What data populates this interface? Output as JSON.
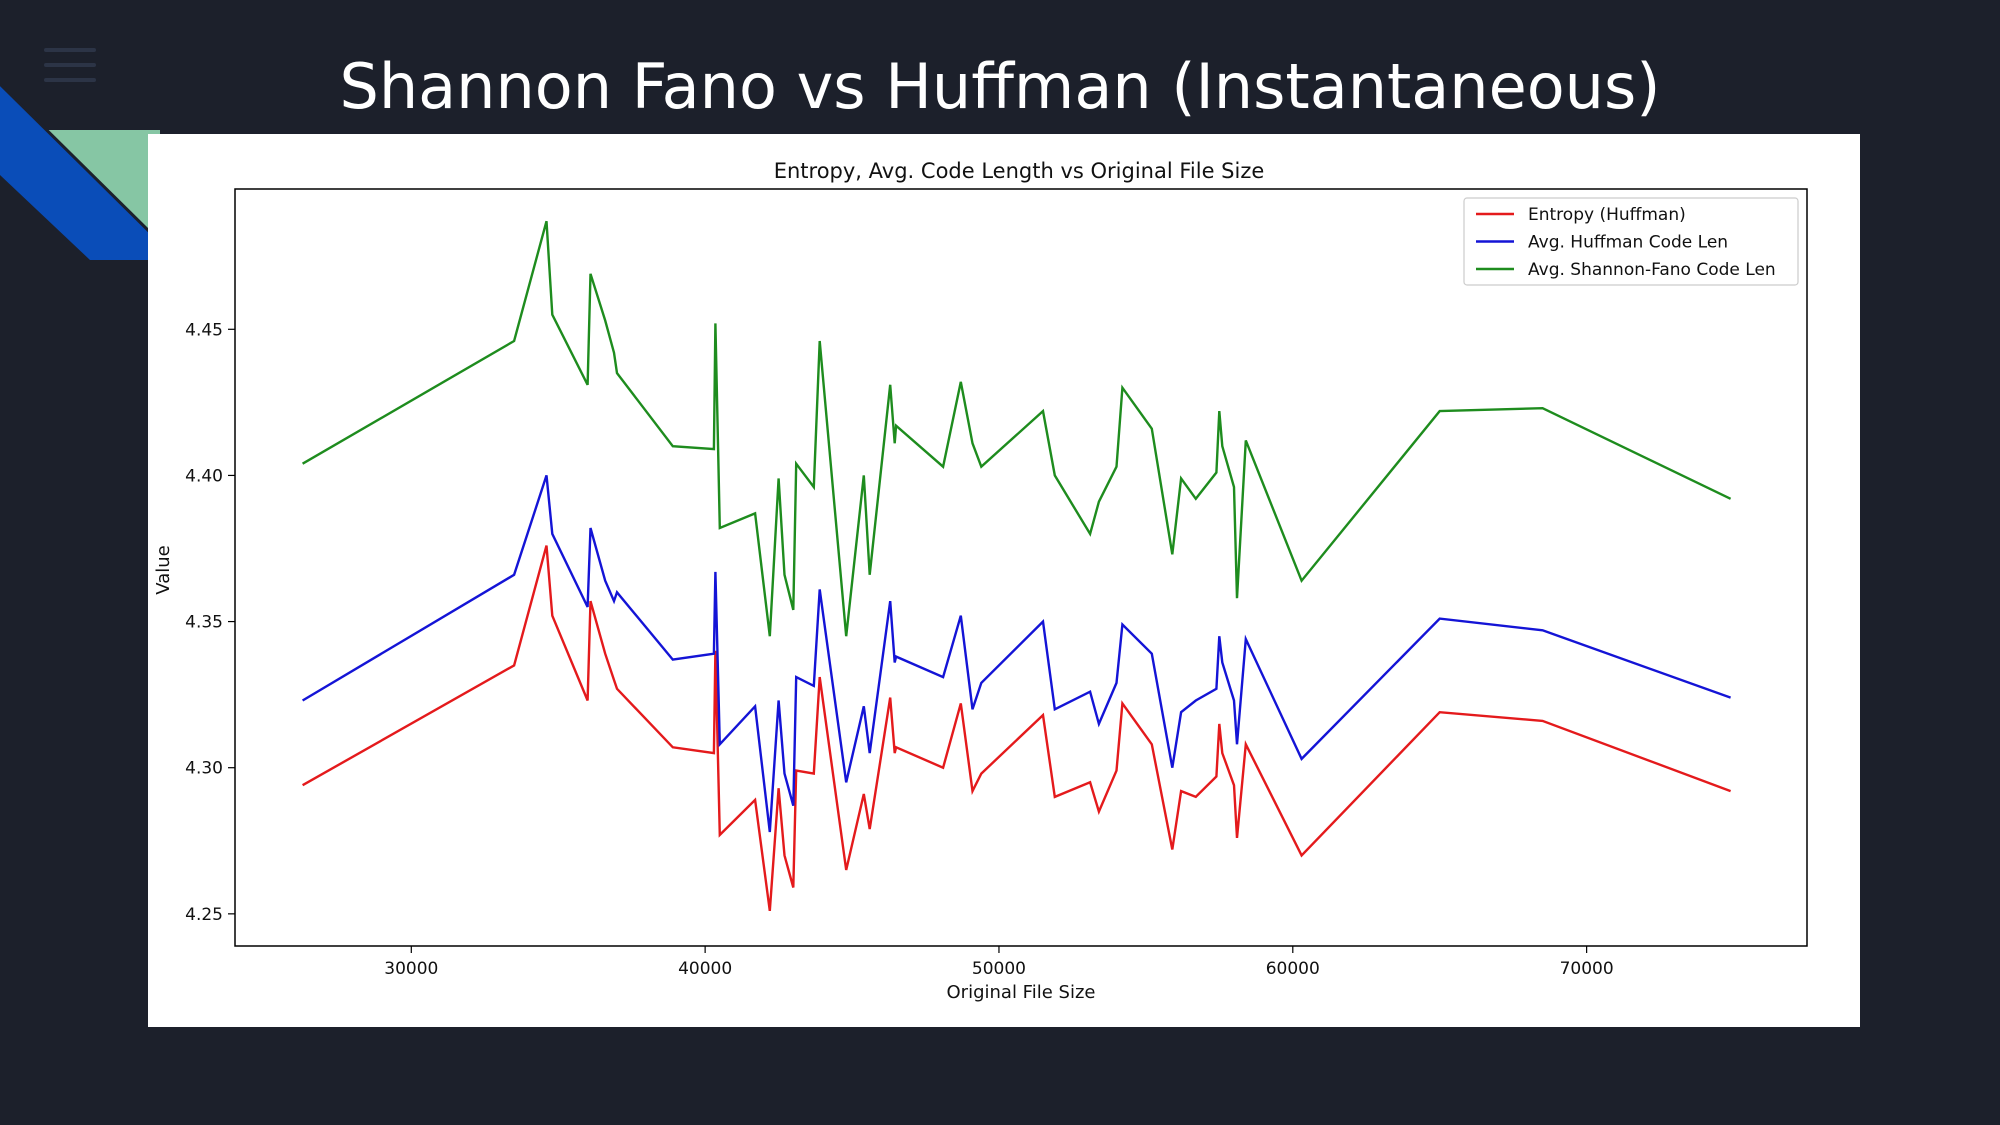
{
  "slide": {
    "title": "Shannon Fano vs Huffman (Instantaneous)",
    "menu_icon": "hamburger-menu-icon"
  },
  "colors": {
    "background": "#1c202b",
    "accent_blue": "#0a4db8",
    "accent_green": "#86c6a4"
  },
  "chart_data": {
    "type": "line",
    "title": "Entropy, Avg. Code Length vs Original File Size",
    "xlabel": "Original File Size",
    "ylabel": "Value",
    "xlim": [
      24000,
      77500
    ],
    "ylim": [
      4.239,
      4.498
    ],
    "xticks": [
      30000,
      40000,
      50000,
      60000,
      70000
    ],
    "yticks": [
      4.25,
      4.3,
      4.35,
      4.4,
      4.45
    ],
    "ytick_labels": [
      "4.25",
      "4.30",
      "4.35",
      "4.40",
      "4.45"
    ],
    "legend_position": "upper right",
    "grid": false,
    "x": [
      26300,
      33500,
      34600,
      34800,
      36000,
      36100,
      36600,
      36900,
      37000,
      38900,
      40300,
      40350,
      40500,
      41700,
      42200,
      42500,
      42700,
      43000,
      43100,
      43700,
      43900,
      44800,
      45400,
      45600,
      46300,
      46450,
      46500,
      48100,
      48700,
      49100,
      49400,
      51500,
      51900,
      53100,
      53400,
      54000,
      54200,
      55200,
      55900,
      56200,
      56700,
      57400,
      57500,
      57600,
      58000,
      58100,
      58400,
      60300,
      65000,
      68500,
      74900
    ],
    "series": [
      {
        "name": "Entropy (Huffman)",
        "color": "#e41a1c",
        "values": [
          4.294,
          4.335,
          4.376,
          4.352,
          4.323,
          4.357,
          4.339,
          4.33,
          4.327,
          4.307,
          4.305,
          4.34,
          4.277,
          4.289,
          4.251,
          4.293,
          4.27,
          4.259,
          4.299,
          4.298,
          4.331,
          4.265,
          4.291,
          4.279,
          4.324,
          4.305,
          4.307,
          4.3,
          4.322,
          4.292,
          4.298,
          4.318,
          4.29,
          4.295,
          4.285,
          4.299,
          4.322,
          4.308,
          4.272,
          4.292,
          4.29,
          4.297,
          4.315,
          4.305,
          4.294,
          4.276,
          4.308,
          4.27,
          4.319,
          4.316,
          4.292
        ]
      },
      {
        "name": "Avg. Huffman Code Len",
        "color": "#1414d6",
        "values": [
          4.323,
          4.366,
          4.4,
          4.38,
          4.355,
          4.382,
          4.364,
          4.357,
          4.36,
          4.337,
          4.339,
          4.367,
          4.308,
          4.321,
          4.278,
          4.323,
          4.298,
          4.287,
          4.331,
          4.328,
          4.361,
          4.295,
          4.321,
          4.305,
          4.357,
          4.336,
          4.338,
          4.331,
          4.352,
          4.32,
          4.329,
          4.35,
          4.32,
          4.326,
          4.315,
          4.329,
          4.349,
          4.339,
          4.3,
          4.319,
          4.323,
          4.327,
          4.345,
          4.336,
          4.323,
          4.308,
          4.344,
          4.303,
          4.351,
          4.347,
          4.324
        ]
      },
      {
        "name": "Avg. Shannon-Fano Code Len",
        "color": "#1e8c1e",
        "values": [
          4.404,
          4.446,
          4.487,
          4.455,
          4.431,
          4.469,
          4.453,
          4.442,
          4.435,
          4.41,
          4.409,
          4.452,
          4.382,
          4.387,
          4.345,
          4.399,
          4.366,
          4.354,
          4.404,
          4.396,
          4.446,
          4.345,
          4.4,
          4.366,
          4.431,
          4.411,
          4.417,
          4.403,
          4.432,
          4.411,
          4.403,
          4.422,
          4.4,
          4.38,
          4.391,
          4.403,
          4.43,
          4.416,
          4.373,
          4.399,
          4.392,
          4.401,
          4.422,
          4.41,
          4.396,
          4.358,
          4.412,
          4.364,
          4.422,
          4.423,
          4.392
        ]
      }
    ]
  }
}
